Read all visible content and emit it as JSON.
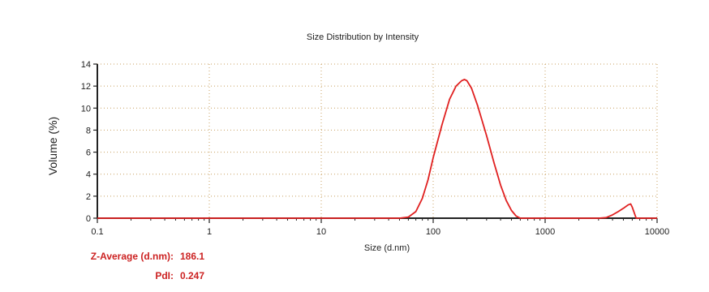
{
  "chart_data": {
    "type": "line",
    "title": "Size Distribution by Intensity",
    "xlabel": "Size (d.nm)",
    "ylabel": "Volume (%)",
    "x_scale": "log",
    "xlim": [
      0.1,
      10000
    ],
    "ylim": [
      0,
      14
    ],
    "x_ticks": [
      "0.1",
      "1",
      "10",
      "100",
      "1000",
      "10000"
    ],
    "y_ticks": [
      "0",
      "2",
      "4",
      "6",
      "8",
      "10",
      "12",
      "14"
    ],
    "grid": true,
    "legend": "none",
    "series": [
      {
        "color": "#e02020",
        "x": [
          0.1,
          0.4,
          1,
          10,
          50,
          60,
          70,
          80,
          90,
          100,
          120,
          140,
          160,
          180,
          190,
          200,
          220,
          250,
          300,
          350,
          400,
          450,
          500,
          550,
          600,
          700,
          1000,
          3000,
          3500,
          4000,
          4500,
          5000,
          5500,
          5800,
          6000,
          6500,
          10000
        ],
        "y": [
          0,
          0,
          0,
          0,
          0,
          0.1,
          0.6,
          1.8,
          3.5,
          5.5,
          8.5,
          10.8,
          12.0,
          12.5,
          12.6,
          12.5,
          11.8,
          10.2,
          7.5,
          5.0,
          3.0,
          1.6,
          0.7,
          0.2,
          0.0,
          0,
          0,
          0,
          0.05,
          0.3,
          0.6,
          0.9,
          1.2,
          1.3,
          1.0,
          0,
          0
        ]
      }
    ]
  },
  "stats": {
    "z_average_label": "Z-Average (d.nm):",
    "z_average_value": "186.1",
    "pdi_label": "PdI:",
    "pdi_value": "0.247"
  }
}
